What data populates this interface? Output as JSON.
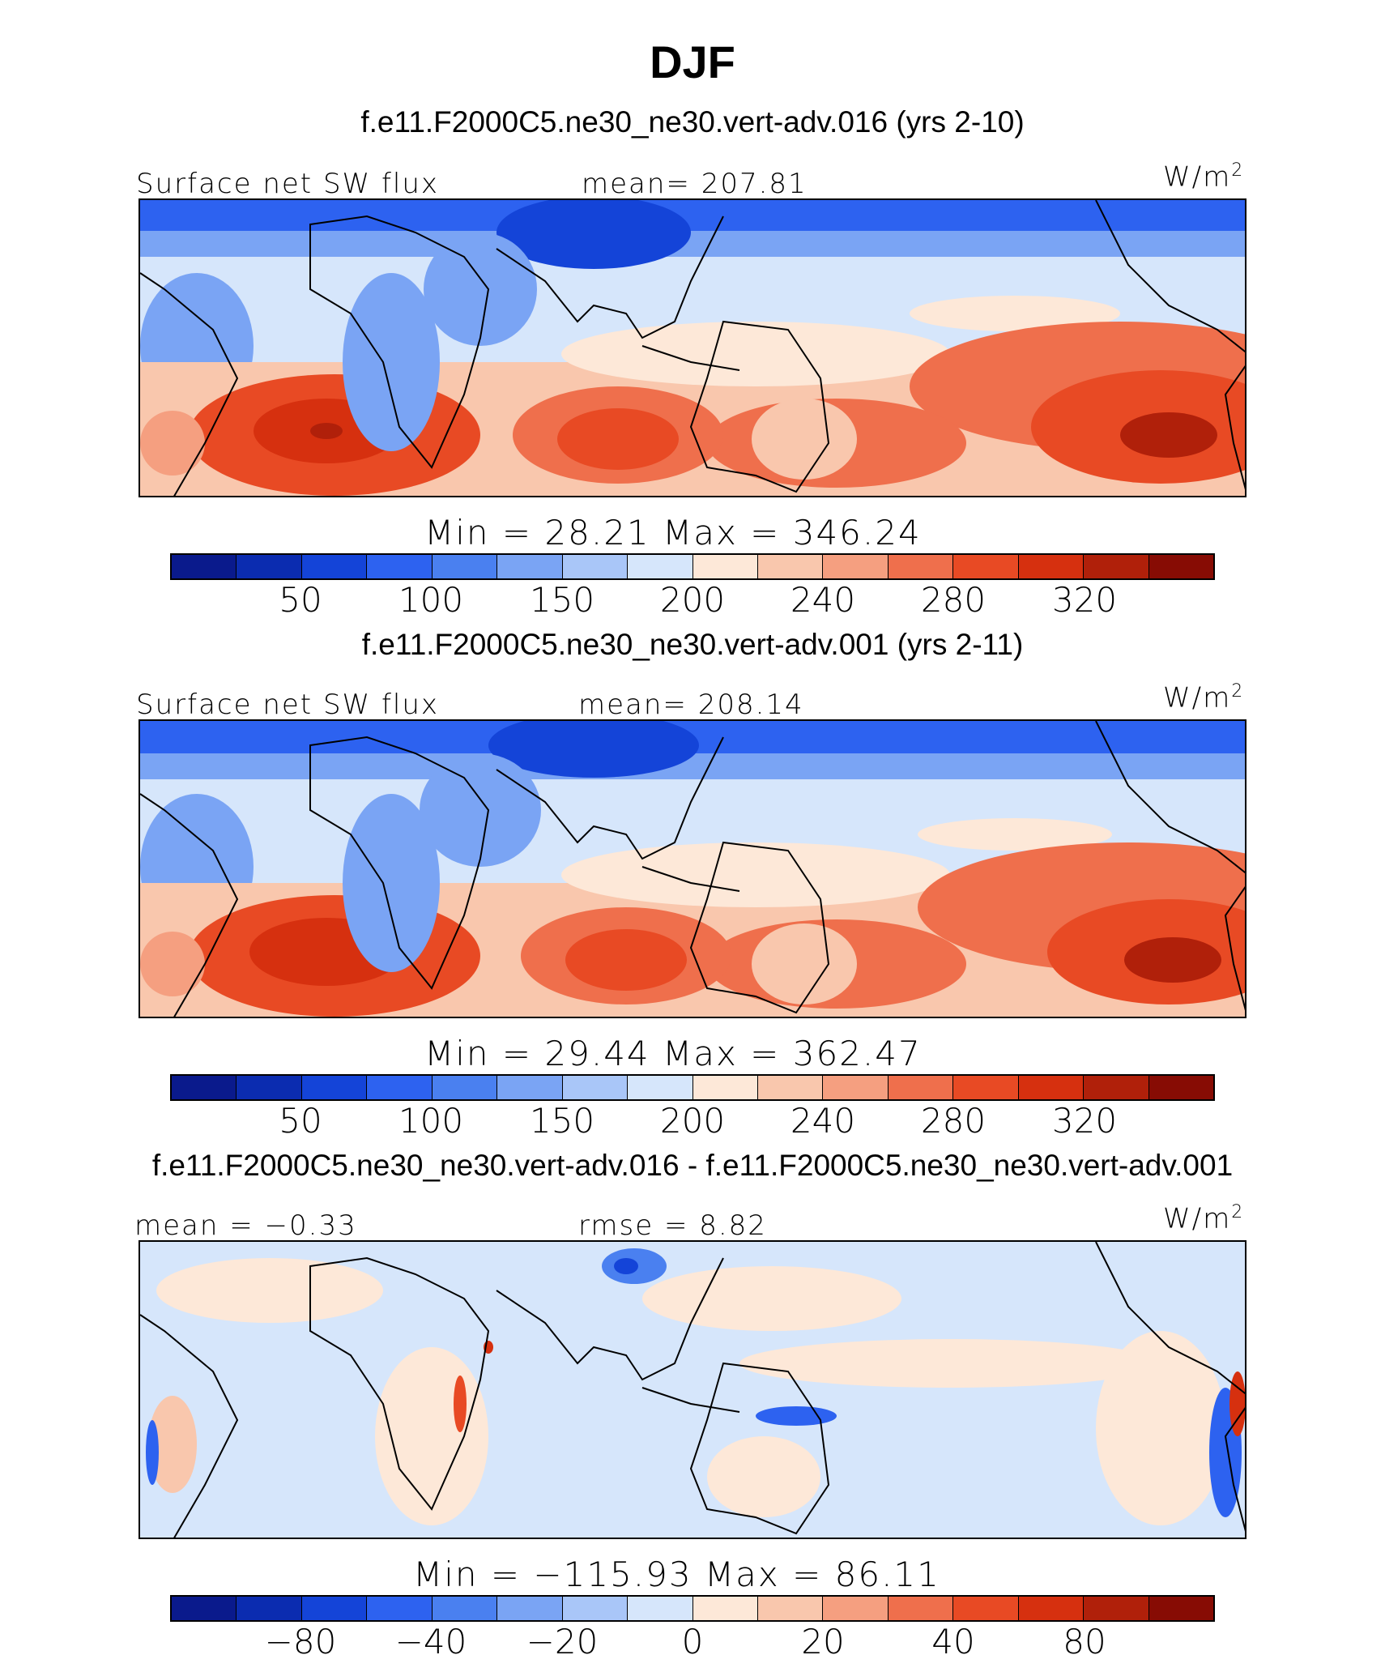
{
  "title": "DJF",
  "colorbar_colors": [
    "#0a1a8c",
    "#0b2cb0",
    "#1444d8",
    "#2d62f0",
    "#4a80f0",
    "#7aa4f4",
    "#a9c6f8",
    "#d6e6fb",
    "#fde8d8",
    "#f9c7ad",
    "#f59f80",
    "#ef6f4c",
    "#e84a24",
    "#d6300f",
    "#b0200a",
    "#870c04"
  ],
  "panels": [
    {
      "case_title": "f.e11.F2000C5.ne30_ne30.vert-adv.016 (yrs 2-10)",
      "left_label": "Surface  net  SW  flux",
      "center_label": "mean=  207.81",
      "units_base": "W/m",
      "units_exp": "2",
      "minmax": "Min  =    28.21  Max  =  346.24",
      "ticks": [
        "50",
        "100",
        "150",
        "200",
        "240",
        "280",
        "320"
      ]
    },
    {
      "case_title": "f.e11.F2000C5.ne30_ne30.vert-adv.001 (yrs 2-11)",
      "left_label": "Surface  net  SW  flux",
      "center_label": "mean=  208.14",
      "units_base": "W/m",
      "units_exp": "2",
      "minmax": "Min  =    29.44  Max  =  362.47",
      "ticks": [
        "50",
        "100",
        "150",
        "200",
        "240",
        "280",
        "320"
      ]
    },
    {
      "case_title": "f.e11.F2000C5.ne30_ne30.vert-adv.016 - f.e11.F2000C5.ne30_ne30.vert-adv.001",
      "left_label": "mean  =   −0.33",
      "center_label": "rmse  =     8.82",
      "units_base": "W/m",
      "units_exp": "2",
      "minmax": "Min  =  −115.93  Max  =    86.11",
      "ticks": [
        "−80",
        "−40",
        "−20",
        "0",
        "20",
        "40",
        "80"
      ]
    }
  ]
}
